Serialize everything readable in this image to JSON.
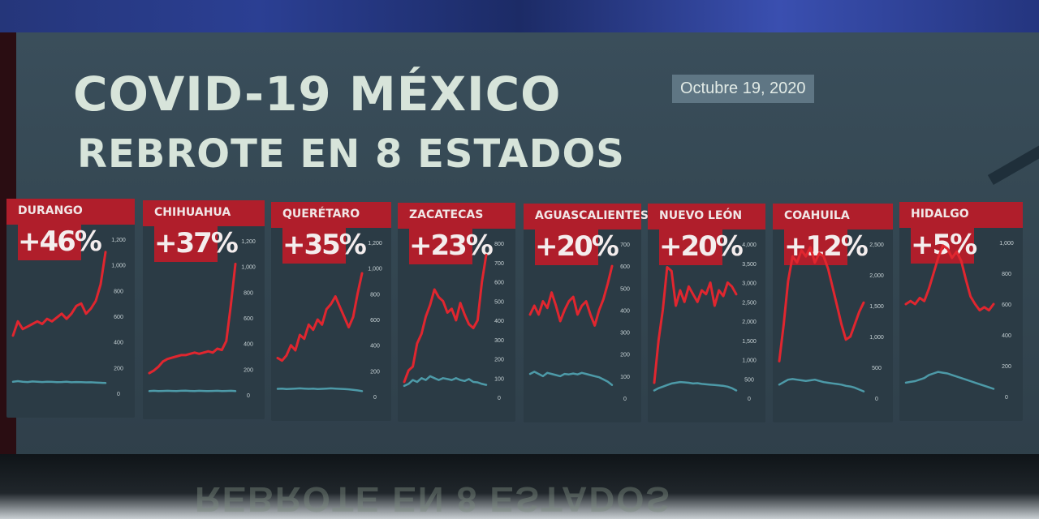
{
  "header": {
    "title": "COVID-19 MÉXICO",
    "subtitle": "REBROTE EN 8 ESTADOS",
    "date": "Octubre 19, 2020"
  },
  "colors": {
    "accent_red": "#b01e2b",
    "line_red": "#e0262f",
    "line_teal": "#4d9aa8",
    "title_text": "#d7e4da"
  },
  "chart_data": [
    {
      "type": "line",
      "state": "DURANGO",
      "change": "+46%",
      "yticks": [
        "1,200",
        "1,000",
        "800",
        "600",
        "400",
        "200",
        "0"
      ],
      "ylim": [
        0,
        1200
      ],
      "series": [
        {
          "values": [
            450,
            560,
            500,
            520,
            540,
            560,
            540,
            580,
            560,
            590,
            620,
            580,
            620,
            680,
            700,
            620,
            660,
            720,
            850,
            1100
          ]
        },
        {
          "values": [
            90,
            95,
            90,
            88,
            92,
            90,
            88,
            90,
            89,
            87,
            88,
            90,
            86,
            88,
            87,
            85,
            86,
            84,
            82,
            80
          ]
        }
      ]
    },
    {
      "type": "line",
      "state": "CHIHUAHUA",
      "change": "+37%",
      "yticks": [
        "1,200",
        "1,000",
        "800",
        "600",
        "400",
        "200",
        "0"
      ],
      "ylim": [
        0,
        1200
      ],
      "series": [
        {
          "values": [
            170,
            190,
            220,
            260,
            280,
            290,
            300,
            310,
            310,
            320,
            330,
            320,
            330,
            340,
            330,
            360,
            350,
            420,
            700,
            1020
          ]
        },
        {
          "values": [
            30,
            32,
            30,
            31,
            32,
            31,
            30,
            32,
            33,
            31,
            30,
            32,
            31,
            30,
            31,
            32,
            30,
            31,
            32,
            30
          ]
        }
      ]
    },
    {
      "type": "line",
      "state": "QUERÉTARO",
      "change": "+35%",
      "yticks": [
        "1,200",
        "1,000",
        "800",
        "600",
        "400",
        "200",
        "0"
      ],
      "ylim": [
        0,
        1200
      ],
      "series": [
        {
          "values": [
            300,
            280,
            320,
            400,
            360,
            480,
            450,
            560,
            520,
            600,
            560,
            680,
            720,
            780,
            700,
            620,
            540,
            620,
            800,
            960
          ]
        },
        {
          "values": [
            60,
            62,
            58,
            60,
            62,
            64,
            62,
            60,
            62,
            58,
            60,
            62,
            64,
            62,
            60,
            58,
            56,
            52,
            48,
            42
          ]
        }
      ]
    },
    {
      "type": "line",
      "state": "ZACATECAS",
      "change": "+23%",
      "yticks": [
        "800",
        "700",
        "600",
        "500",
        "400",
        "300",
        "200",
        "100",
        "0"
      ],
      "ylim": [
        0,
        800
      ],
      "series": [
        {
          "values": [
            80,
            140,
            160,
            280,
            330,
            420,
            480,
            560,
            520,
            500,
            440,
            460,
            400,
            490,
            430,
            380,
            360,
            400,
            600,
            740
          ]
        },
        {
          "values": [
            60,
            70,
            90,
            80,
            100,
            90,
            110,
            100,
            90,
            100,
            95,
            90,
            100,
            90,
            85,
            95,
            80,
            78,
            70,
            65
          ]
        }
      ]
    },
    {
      "type": "line",
      "state": "AGUASCALIENTES",
      "change": "+20%",
      "yticks": [
        "700",
        "600",
        "500",
        "400",
        "300",
        "200",
        "100",
        "0"
      ],
      "ylim": [
        0,
        700
      ],
      "series": [
        {
          "values": [
            380,
            420,
            380,
            440,
            410,
            480,
            420,
            350,
            400,
            440,
            460,
            380,
            420,
            440,
            380,
            330,
            400,
            450,
            520,
            600
          ]
        },
        {
          "values": [
            110,
            120,
            110,
            100,
            115,
            110,
            105,
            100,
            110,
            108,
            112,
            108,
            115,
            110,
            105,
            100,
            95,
            85,
            75,
            60
          ]
        }
      ]
    },
    {
      "type": "line",
      "state": "NUEVO LEÓN",
      "change": "+20%",
      "yticks": [
        "4,000",
        "3,500",
        "3,000",
        "2,500",
        "2,000",
        "1,500",
        "1,000",
        "500",
        "0"
      ],
      "ylim": [
        0,
        4000
      ],
      "series": [
        {
          "values": [
            400,
            1500,
            2300,
            3400,
            3300,
            2400,
            2800,
            2500,
            2900,
            2700,
            2500,
            2800,
            2700,
            3000,
            2400,
            2800,
            2650,
            3000,
            2900,
            2700
          ]
        },
        {
          "values": [
            200,
            260,
            300,
            340,
            380,
            400,
            420,
            410,
            400,
            380,
            390,
            370,
            360,
            350,
            340,
            330,
            320,
            300,
            260,
            200
          ]
        }
      ]
    },
    {
      "type": "line",
      "state": "COAHUILA",
      "change": "+12%",
      "yticks": [
        "2,500",
        "2,000",
        "1,500",
        "1,000",
        "500",
        "0"
      ],
      "ylim": [
        0,
        2500
      ],
      "series": [
        {
          "values": [
            600,
            1200,
            1900,
            2300,
            2200,
            2400,
            2300,
            2450,
            2200,
            2350,
            2300,
            2100,
            1800,
            1500,
            1200,
            950,
            1000,
            1200,
            1400,
            1550
          ]
        },
        {
          "values": [
            220,
            260,
            300,
            310,
            300,
            290,
            280,
            290,
            300,
            280,
            260,
            250,
            240,
            230,
            220,
            200,
            190,
            170,
            140,
            110
          ]
        }
      ]
    },
    {
      "type": "line",
      "state": "HIDALGO",
      "change": "+5%",
      "yticks": [
        "1,000",
        "800",
        "600",
        "400",
        "200",
        "0"
      ],
      "ylim": [
        0,
        1000
      ],
      "series": [
        {
          "values": [
            600,
            620,
            600,
            640,
            620,
            700,
            800,
            900,
            980,
            960,
            900,
            940,
            880,
            760,
            650,
            600,
            560,
            580,
            560,
            600
          ]
        },
        {
          "values": [
            90,
            95,
            100,
            110,
            120,
            140,
            150,
            160,
            155,
            150,
            140,
            130,
            120,
            110,
            100,
            90,
            80,
            70,
            60,
            50
          ]
        }
      ]
    }
  ]
}
